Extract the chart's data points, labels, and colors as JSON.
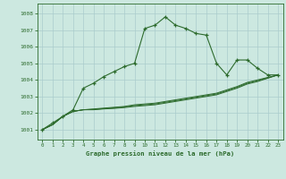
{
  "title": "Graphe pression niveau de la mer (hPa)",
  "bg_color": "#cce8e0",
  "grid_color": "#aacccc",
  "line_color": "#2d6b2d",
  "xlim": [
    -0.5,
    23.5
  ],
  "ylim": [
    1000.4,
    1008.6
  ],
  "yticks": [
    1001,
    1002,
    1003,
    1004,
    1005,
    1006,
    1007,
    1008
  ],
  "xticks": [
    0,
    1,
    2,
    3,
    4,
    5,
    6,
    7,
    8,
    9,
    10,
    11,
    12,
    13,
    14,
    15,
    16,
    17,
    18,
    19,
    20,
    21,
    22,
    23
  ],
  "series1": [
    1001.0,
    1001.4,
    1001.8,
    1002.2,
    1003.5,
    1003.8,
    1004.2,
    1004.5,
    1004.8,
    1005.0,
    1007.1,
    1007.3,
    1007.8,
    1007.3,
    1007.1,
    1006.8,
    1006.7,
    1005.0,
    1004.3,
    1005.2,
    1005.2,
    1004.7,
    1004.3,
    1004.3
  ],
  "series2": [
    1001.0,
    1001.3,
    1001.8,
    1002.1,
    1002.2,
    1002.25,
    1002.3,
    1002.35,
    1002.4,
    1002.5,
    1002.55,
    1002.6,
    1002.7,
    1002.8,
    1002.9,
    1003.0,
    1003.1,
    1003.2,
    1003.4,
    1003.6,
    1003.85,
    1004.0,
    1004.15,
    1004.3
  ],
  "series3": [
    1001.0,
    1001.3,
    1001.8,
    1002.1,
    1002.2,
    1002.22,
    1002.27,
    1002.32,
    1002.37,
    1002.45,
    1002.5,
    1002.55,
    1002.65,
    1002.75,
    1002.85,
    1002.95,
    1003.05,
    1003.15,
    1003.35,
    1003.55,
    1003.8,
    1003.95,
    1004.12,
    1004.3
  ],
  "series4": [
    1001.0,
    1001.3,
    1001.8,
    1002.1,
    1002.2,
    1002.2,
    1002.25,
    1002.28,
    1002.33,
    1002.4,
    1002.45,
    1002.5,
    1002.6,
    1002.7,
    1002.8,
    1002.9,
    1003.0,
    1003.1,
    1003.3,
    1003.5,
    1003.75,
    1003.9,
    1004.1,
    1004.3
  ]
}
